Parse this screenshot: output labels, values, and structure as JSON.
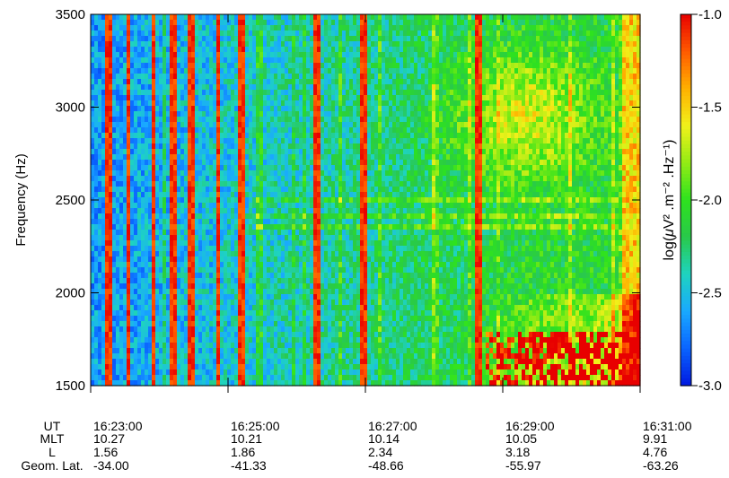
{
  "chart_data": {
    "type": "heatmap",
    "ylabel": "Frequency (Hz)",
    "ylim": [
      1500,
      3500
    ],
    "y_ticks": [
      1500,
      2000,
      2500,
      3000,
      3500
    ],
    "y_tick_labels": [
      "1500",
      "2000",
      "2500",
      "3000",
      "3500"
    ],
    "x_ticks": [
      "16:23:00",
      "16:25:00",
      "16:27:00",
      "16:29:00",
      "16:31:00"
    ],
    "xlim": [
      "16:23:00",
      "16:31:00"
    ],
    "colorbar": {
      "label_prefix": "log(",
      "label_mu": "μ",
      "label_body": "V² .m⁻² .Hz⁻¹",
      "label_suffix": ")",
      "range": [
        -3.0,
        -1.0
      ],
      "ticks": [
        "-1.0",
        "-1.5",
        "-2.0",
        "-2.5",
        "-3.0"
      ],
      "colormap": [
        "#0019e0",
        "#0a64ff",
        "#19a9ff",
        "#1ed3c0",
        "#29c94a",
        "#2ee21e",
        "#93ec14",
        "#f1f11a",
        "#ffb000",
        "#ff5a00",
        "#e80000"
      ]
    },
    "ephemeris": {
      "row_labels": [
        "UT",
        "MLT",
        "L",
        "Geom. Lat."
      ],
      "columns": [
        [
          "16:23:00",
          "10.27",
          "1.56",
          "-34.00"
        ],
        [
          "16:25:00",
          "10.21",
          "1.86",
          "-41.33"
        ],
        [
          "16:27:00",
          "10.14",
          "2.34",
          "-48.66"
        ],
        [
          "16:29:00",
          "10.05",
          "3.18",
          "-55.97"
        ],
        [
          "16:31:00",
          "9.91",
          "4.76",
          "-63.26"
        ]
      ]
    },
    "features": {
      "bursts_minutes": [
        0.25,
        0.55,
        0.92,
        1.22,
        1.45,
        1.85,
        2.2,
        3.3,
        3.97,
        5.65
      ],
      "bands_hz": [
        2350,
        2420,
        2510
      ]
    }
  }
}
